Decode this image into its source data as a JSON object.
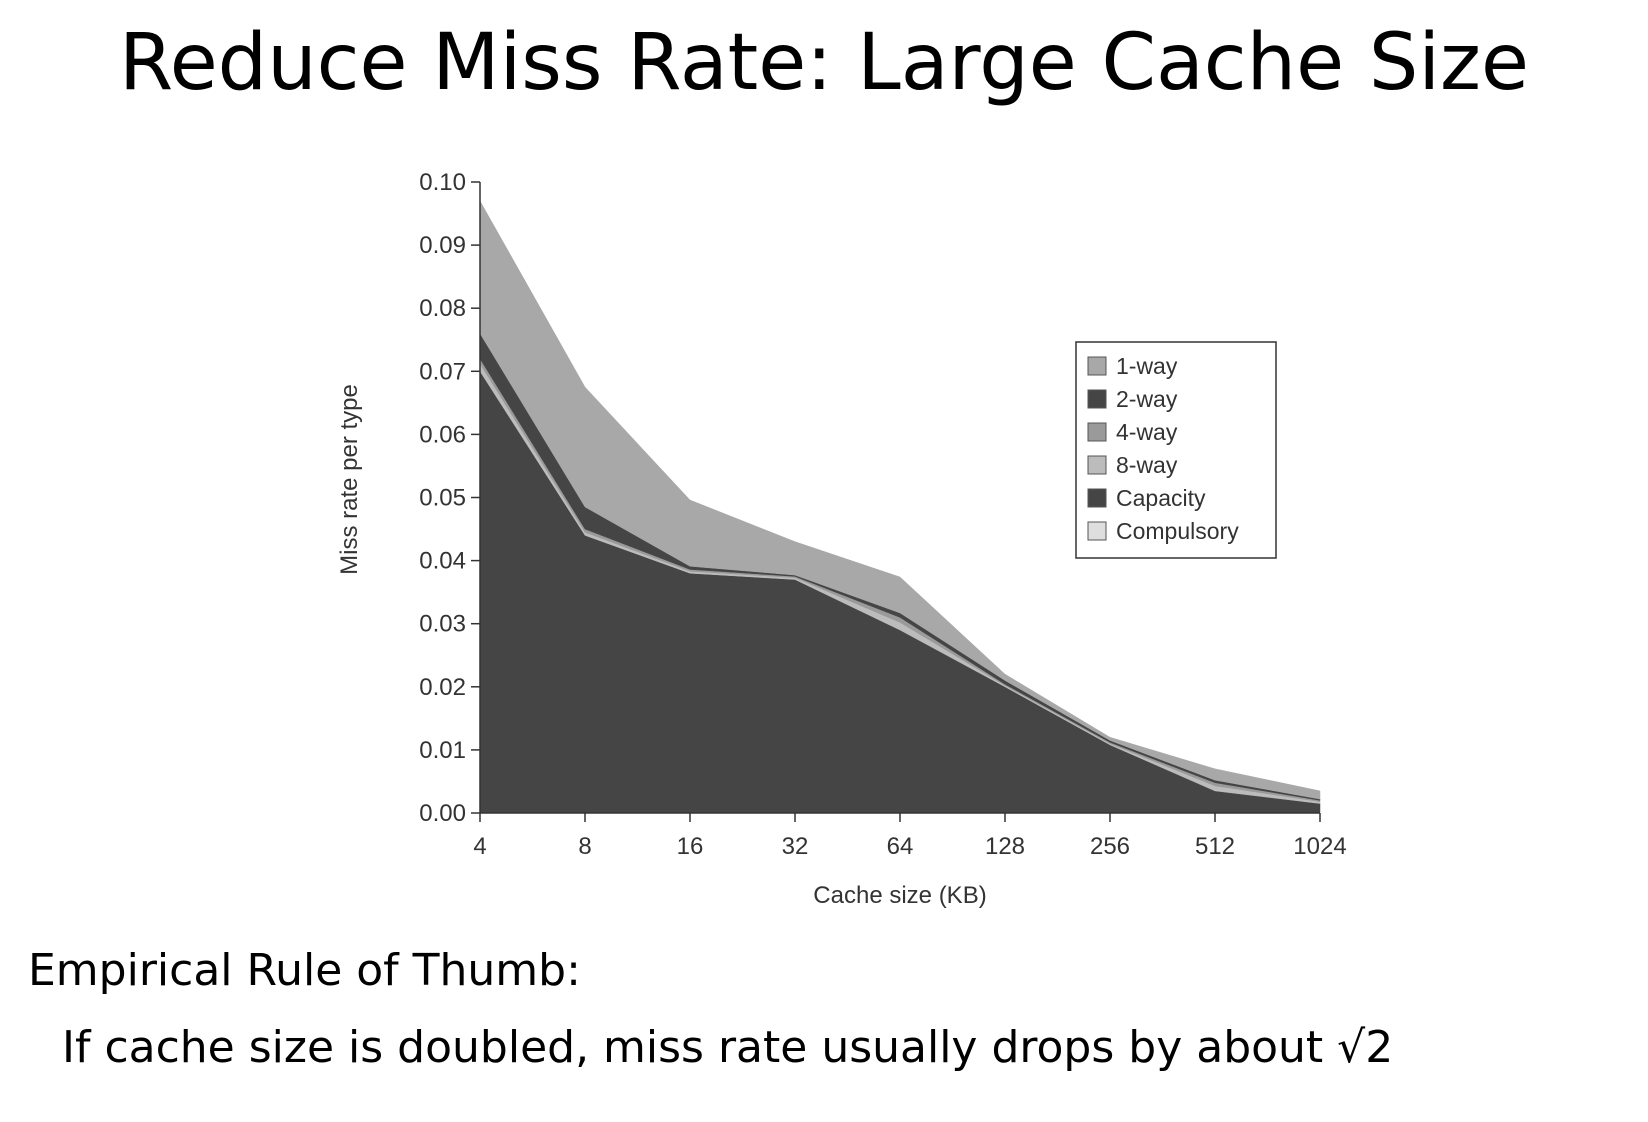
{
  "slide": {
    "title": "Reduce Miss Rate: Large Cache Size",
    "rule_heading": "Empirical Rule of Thumb:",
    "rule_body": "If cache size is doubled, miss rate usually drops by about √2"
  },
  "chart_data": {
    "type": "area",
    "stacked": true,
    "xlabel": "Cache size (KB)",
    "ylabel": "Miss rate per type",
    "categories": [
      "4",
      "8",
      "16",
      "32",
      "64",
      "128",
      "256",
      "512",
      "1024"
    ],
    "ylim": [
      0,
      0.1
    ],
    "yticks": [
      "0.00",
      "0.01",
      "0.02",
      "0.03",
      "0.04",
      "0.05",
      "0.06",
      "0.07",
      "0.08",
      "0.09",
      "0.10"
    ],
    "grid": false,
    "legend_position": "right",
    "legend": [
      {
        "label": "1-way",
        "color": "#a8a8a8"
      },
      {
        "label": "2-way",
        "color": "#454545"
      },
      {
        "label": "4-way",
        "color": "#9a9a9a"
      },
      {
        "label": "8-way",
        "color": "#bcbcbc"
      },
      {
        "label": "Capacity",
        "color": "#454545"
      },
      {
        "label": "Compulsory",
        "color": "#dedede"
      }
    ],
    "series": [
      {
        "name": "Compulsory",
        "color": "#dedede",
        "values": [
          0.0001,
          0.0001,
          0.0001,
          0.0001,
          0.0001,
          0.0001,
          0.0001,
          0.0001,
          0.0001
        ]
      },
      {
        "name": "Capacity",
        "color": "#454545",
        "values": [
          0.0699,
          0.0439,
          0.0379,
          0.0369,
          0.0289,
          0.0199,
          0.0107,
          0.0034,
          0.0014
        ]
      },
      {
        "name": "8-way",
        "color": "#bcbcbc",
        "values": [
          0.0012,
          0.0005,
          0.0003,
          0.0003,
          0.0012,
          0.0002,
          0.0002,
          0.0008,
          0.0003
        ]
      },
      {
        "name": "4-way",
        "color": "#9a9a9a",
        "values": [
          0.0008,
          0.0005,
          0.0003,
          0.0002,
          0.0008,
          0.0002,
          0.0002,
          0.0005,
          0.0002
        ]
      },
      {
        "name": "2-way",
        "color": "#454545",
        "values": [
          0.004,
          0.0035,
          0.0005,
          0.0002,
          0.0007,
          0.0006,
          0.0003,
          0.0004,
          0.0002
        ]
      },
      {
        "name": "1-way",
        "color": "#a8a8a8",
        "values": [
          0.021,
          0.019,
          0.0105,
          0.0053,
          0.0057,
          0.001,
          0.0005,
          0.0018,
          0.0013
        ]
      }
    ]
  }
}
